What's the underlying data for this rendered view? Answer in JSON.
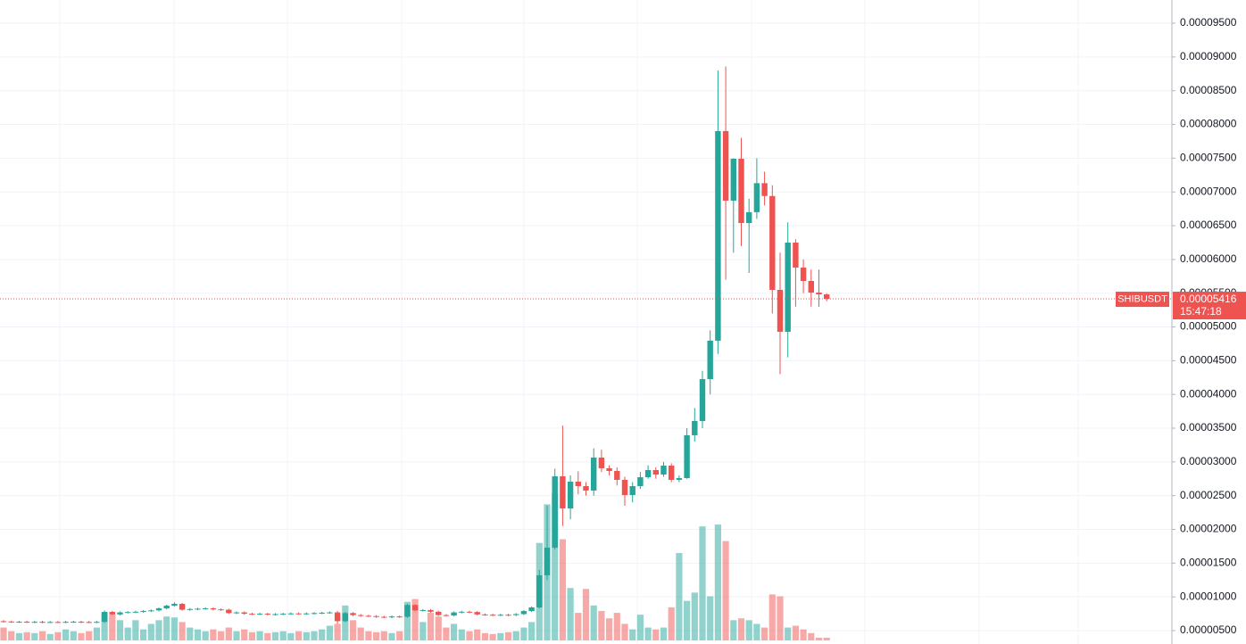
{
  "chart_data": {
    "type": "candlestick",
    "symbol": "SHIBUSDT",
    "countdown": "15:47:18",
    "last_price": 5.416e-05,
    "up_color": "#26a69a",
    "down_color": "#ef5350",
    "grid": true,
    "ylim": [
      3.02e-06,
      9.844e-05
    ],
    "yticks": [
      {
        "value": 5e-06,
        "label": "0.00000500"
      },
      {
        "value": 1e-05,
        "label": "0.00001000"
      },
      {
        "value": 1.5e-05,
        "label": "0.00001500"
      },
      {
        "value": 2e-05,
        "label": "0.00002000"
      },
      {
        "value": 2.5e-05,
        "label": "0.00002500"
      },
      {
        "value": 3e-05,
        "label": "0.00003000"
      },
      {
        "value": 3.5e-05,
        "label": "0.00003500"
      },
      {
        "value": 4e-05,
        "label": "0.00004000"
      },
      {
        "value": 4.5e-05,
        "label": "0.00004500"
      },
      {
        "value": 5e-05,
        "label": "0.00005000"
      },
      {
        "value": 5.5e-05,
        "label": "0.00005500"
      },
      {
        "value": 6e-05,
        "label": "0.00006000"
      },
      {
        "value": 6.5e-05,
        "label": "0.00006500"
      },
      {
        "value": 7e-05,
        "label": "0.00007000"
      },
      {
        "value": 7.5e-05,
        "label": "0.00007500"
      },
      {
        "value": 8e-05,
        "label": "0.00008000"
      },
      {
        "value": 8.5e-05,
        "label": "0.00008500"
      },
      {
        "value": 9e-05,
        "label": "0.00009000"
      },
      {
        "value": 9.5e-05,
        "label": "0.00009500"
      }
    ],
    "open": [
      6.4e-06,
      6.35e-06,
      6.3e-06,
      6.32e-06,
      6.28e-06,
      6.3e-06,
      6.25e-06,
      6.28e-06,
      6.26e-06,
      6.3e-06,
      6.32e-06,
      6.28e-06,
      6.25e-06,
      6.3e-06,
      7.78e-06,
      7.4e-06,
      7.7e-06,
      7.75e-06,
      7.8e-06,
      7.9e-06,
      8e-06,
      8.3e-06,
      8.7e-06,
      8.97e-06,
      8.1e-06,
      8.2e-06,
      8.25e-06,
      8.3e-06,
      8.15e-06,
      8.1e-06,
      7.6e-06,
      7.7e-06,
      7.5e-06,
      7.45e-06,
      7.5e-06,
      7.4e-06,
      7.45e-06,
      7.5e-06,
      7.55e-06,
      7.5e-06,
      7.55e-06,
      7.6e-06,
      7.65e-06,
      7.7e-06,
      6.4e-06,
      7.6e-06,
      7.3e-06,
      7.2e-06,
      7.15e-06,
      7.05e-06,
      7e-06,
      7.1e-06,
      7.05e-06,
      8.8e-06,
      8e-06,
      8.05e-06,
      7.8e-06,
      7.3e-06,
      7.25e-06,
      7.7e-06,
      7.8e-06,
      7.75e-06,
      7.4e-06,
      7.35e-06,
      7.3e-06,
      7.35e-06,
      7.3e-06,
      7.45e-06,
      7.9e-06,
      8.44e-06,
      1.32e-05,
      1.729e-05,
      2.787e-05,
      2.311e-05,
      2.707e-05,
      2.641e-05,
      2.575e-05,
      3.064e-05,
      2.906e-05,
      2.866e-05,
      2.734e-05,
      2.509e-05,
      2.641e-05,
      2.773e-05,
      2.879e-05,
      2.813e-05,
      2.945e-05,
      2.734e-05,
      2.76e-05,
      3.395e-05,
      3.606e-05,
      4.227e-05,
      4.796e-05,
      7.902e-05,
      6.871e-05,
      7.492e-05,
      6.54e-05,
      6.7e-05,
      7.13e-05,
      6.94e-05,
      5.549e-05,
      4.928e-05,
      6.249e-05,
      5.879e-05,
      5.681e-05,
      5.509e-05,
      5.482e-05
    ],
    "high": [
      6.55e-06,
      6.5e-06,
      6.47e-06,
      6.47e-06,
      6.45e-06,
      6.45e-06,
      6.43e-06,
      6.43e-06,
      6.45e-06,
      6.47e-06,
      6.47e-06,
      6.43e-06,
      6.45e-06,
      8e-06,
      7.93e-06,
      7.85e-06,
      7.9e-06,
      7.95e-06,
      8.05e-06,
      8.15e-06,
      8.45e-06,
      8.85e-06,
      9.2e-06,
      9.12e-06,
      8.35e-06,
      8.4e-06,
      8.45e-06,
      8.45e-06,
      8.3e-06,
      8.25e-06,
      7.85e-06,
      7.85e-06,
      7.65e-06,
      7.65e-06,
      7.65e-06,
      7.6e-06,
      7.65e-06,
      7.7e-06,
      7.7e-06,
      7.7e-06,
      7.75e-06,
      7.8e-06,
      7.85e-06,
      7.9e-06,
      7.8e-06,
      7.75e-06,
      7.45e-06,
      7.35e-06,
      7.3e-06,
      7.2e-06,
      7.25e-06,
      7.25e-06,
      9e-06,
      8.9e-06,
      8.2e-06,
      8.2e-06,
      7.95e-06,
      7.45e-06,
      7.85e-06,
      7.95e-06,
      7.95e-06,
      7.9e-06,
      7.55e-06,
      7.5e-06,
      7.5e-06,
      7.5e-06,
      7.6e-06,
      8.05e-06,
      8.6e-06,
      1.4e-05,
      2.35e-05,
      2.9e-05,
      3.54e-05,
      2.8e-05,
      2.86e-05,
      2.7e-05,
      3.2e-05,
      3.18e-05,
      2.95e-05,
      2.92e-05,
      2.78e-05,
      2.7e-05,
      2.85e-05,
      2.95e-05,
      2.92e-05,
      3e-05,
      2.98e-05,
      2.8e-05,
      3.5e-05,
      3.8e-05,
      4.35e-05,
      4.95e-05,
      8.8e-05,
      8.86e-05,
      7.5e-05,
      7.8e-05,
      6.9e-05,
      7.5e-05,
      7.3e-05,
      7.1e-05,
      6.1e-05,
      6.55e-05,
      6.3e-05,
      6e-05,
      5.85e-05,
      5.85e-05,
      5.5e-05
    ],
    "low": [
      6.2e-06,
      6.15e-06,
      6.15e-06,
      6.13e-06,
      6.13e-06,
      6.1e-06,
      6.1e-06,
      6.11e-06,
      6.11e-06,
      6.15e-06,
      6.13e-06,
      6.1e-06,
      6.1e-06,
      6.15e-06,
      7.25e-06,
      7.25e-06,
      7.55e-06,
      7.6e-06,
      7.65e-06,
      7.75e-06,
      7.85e-06,
      8.15e-06,
      8.55e-06,
      7.95e-06,
      7.95e-06,
      8.05e-06,
      8.1e-06,
      8e-06,
      7.95e-06,
      7.45e-06,
      7.45e-06,
      7.35e-06,
      7.3e-06,
      7.3e-06,
      7.25e-06,
      7.25e-06,
      7.3e-06,
      7.35e-06,
      7.35e-06,
      7.35e-06,
      7.4e-06,
      7.45e-06,
      7.5e-06,
      6e-06,
      6.25e-06,
      7.15e-06,
      7.05e-06,
      7e-06,
      6.9e-06,
      6.85e-06,
      6.85e-06,
      6.9e-06,
      6.9e-06,
      7.85e-06,
      7.85e-06,
      7.65e-06,
      7.15e-06,
      7.1e-06,
      7.1e-06,
      7.55e-06,
      7.6e-06,
      7.25e-06,
      7.2e-06,
      7.15e-06,
      7.15e-06,
      7.15e-06,
      7.15e-06,
      7.3e-06,
      7.75e-06,
      8.3e-06,
      1.25e-05,
      1.7e-05,
      2.05e-05,
      2.15e-05,
      2.52e-05,
      2.5e-05,
      2.5e-05,
      2.85e-05,
      2.8e-05,
      2.65e-05,
      2.35e-05,
      2.4e-05,
      2.6e-05,
      2.75e-05,
      2.75e-05,
      2.78e-05,
      2.7e-05,
      2.7e-05,
      2.75e-05,
      3.3e-05,
      3.5e-05,
      4e-05,
      4.6e-05,
      5.7e-05,
      6.1e-05,
      6.2e-05,
      5.8e-05,
      6.6e-05,
      6.8e-05,
      5.2e-05,
      4.3e-05,
      4.55e-05,
      5.3e-05,
      5.5e-05,
      5.3e-05,
      5.3e-05,
      5.38e-05
    ],
    "close": [
      6.35e-06,
      6.3e-06,
      6.32e-06,
      6.28e-06,
      6.3e-06,
      6.25e-06,
      6.28e-06,
      6.26e-06,
      6.3e-06,
      6.32e-06,
      6.28e-06,
      6.25e-06,
      6.3e-06,
      7.78e-06,
      7.4e-06,
      7.7e-06,
      7.75e-06,
      7.8e-06,
      7.9e-06,
      8e-06,
      8.3e-06,
      8.7e-06,
      8.97e-06,
      8.1e-06,
      8.2e-06,
      8.25e-06,
      8.3e-06,
      8.15e-06,
      8.1e-06,
      7.6e-06,
      7.7e-06,
      7.5e-06,
      7.45e-06,
      7.5e-06,
      7.4e-06,
      7.45e-06,
      7.5e-06,
      7.55e-06,
      7.5e-06,
      7.55e-06,
      7.6e-06,
      7.65e-06,
      7.7e-06,
      6.4e-06,
      7.6e-06,
      7.3e-06,
      7.2e-06,
      7.15e-06,
      7.05e-06,
      7e-06,
      7.1e-06,
      7.05e-06,
      8.8e-06,
      8e-06,
      8.05e-06,
      7.8e-06,
      7.3e-06,
      7.25e-06,
      7.7e-06,
      7.8e-06,
      7.75e-06,
      7.4e-06,
      7.35e-06,
      7.3e-06,
      7.35e-06,
      7.3e-06,
      7.45e-06,
      7.9e-06,
      8.44e-06,
      1.32e-05,
      1.729e-05,
      2.787e-05,
      2.311e-05,
      2.707e-05,
      2.641e-05,
      2.575e-05,
      3.064e-05,
      2.906e-05,
      2.866e-05,
      2.734e-05,
      2.509e-05,
      2.641e-05,
      2.773e-05,
      2.879e-05,
      2.813e-05,
      2.945e-05,
      2.734e-05,
      2.76e-05,
      3.395e-05,
      3.606e-05,
      4.227e-05,
      4.796e-05,
      7.902e-05,
      6.871e-05,
      7.492e-05,
      6.54e-05,
      6.7e-05,
      7.13e-05,
      6.94e-05,
      5.549e-05,
      4.928e-05,
      6.249e-05,
      5.879e-05,
      5.681e-05,
      5.509e-05,
      5.482e-05,
      5.416e-05
    ],
    "volume": [
      14,
      10,
      8,
      9,
      8,
      10,
      7,
      9,
      12,
      10,
      8,
      10,
      14,
      30,
      28,
      22,
      14,
      22,
      12,
      18,
      22,
      26,
      25,
      20,
      14,
      12,
      10,
      12,
      10,
      14,
      10,
      12,
      9,
      10,
      8,
      9,
      10,
      8,
      10,
      9,
      10,
      12,
      16,
      18,
      38,
      22,
      14,
      10,
      9,
      10,
      8,
      10,
      42,
      45,
      20,
      30,
      26,
      14,
      18,
      12,
      10,
      12,
      8,
      7,
      8,
      9,
      10,
      14,
      20,
      106,
      148,
      160,
      110,
      57,
      30,
      56,
      38,
      32,
      24,
      30,
      18,
      12,
      28,
      14,
      12,
      14,
      36,
      95,
      43,
      52,
      124,
      48,
      126,
      108,
      22,
      24,
      22,
      18,
      14,
      50,
      48,
      14,
      16,
      12,
      8,
      3,
      3
    ]
  }
}
